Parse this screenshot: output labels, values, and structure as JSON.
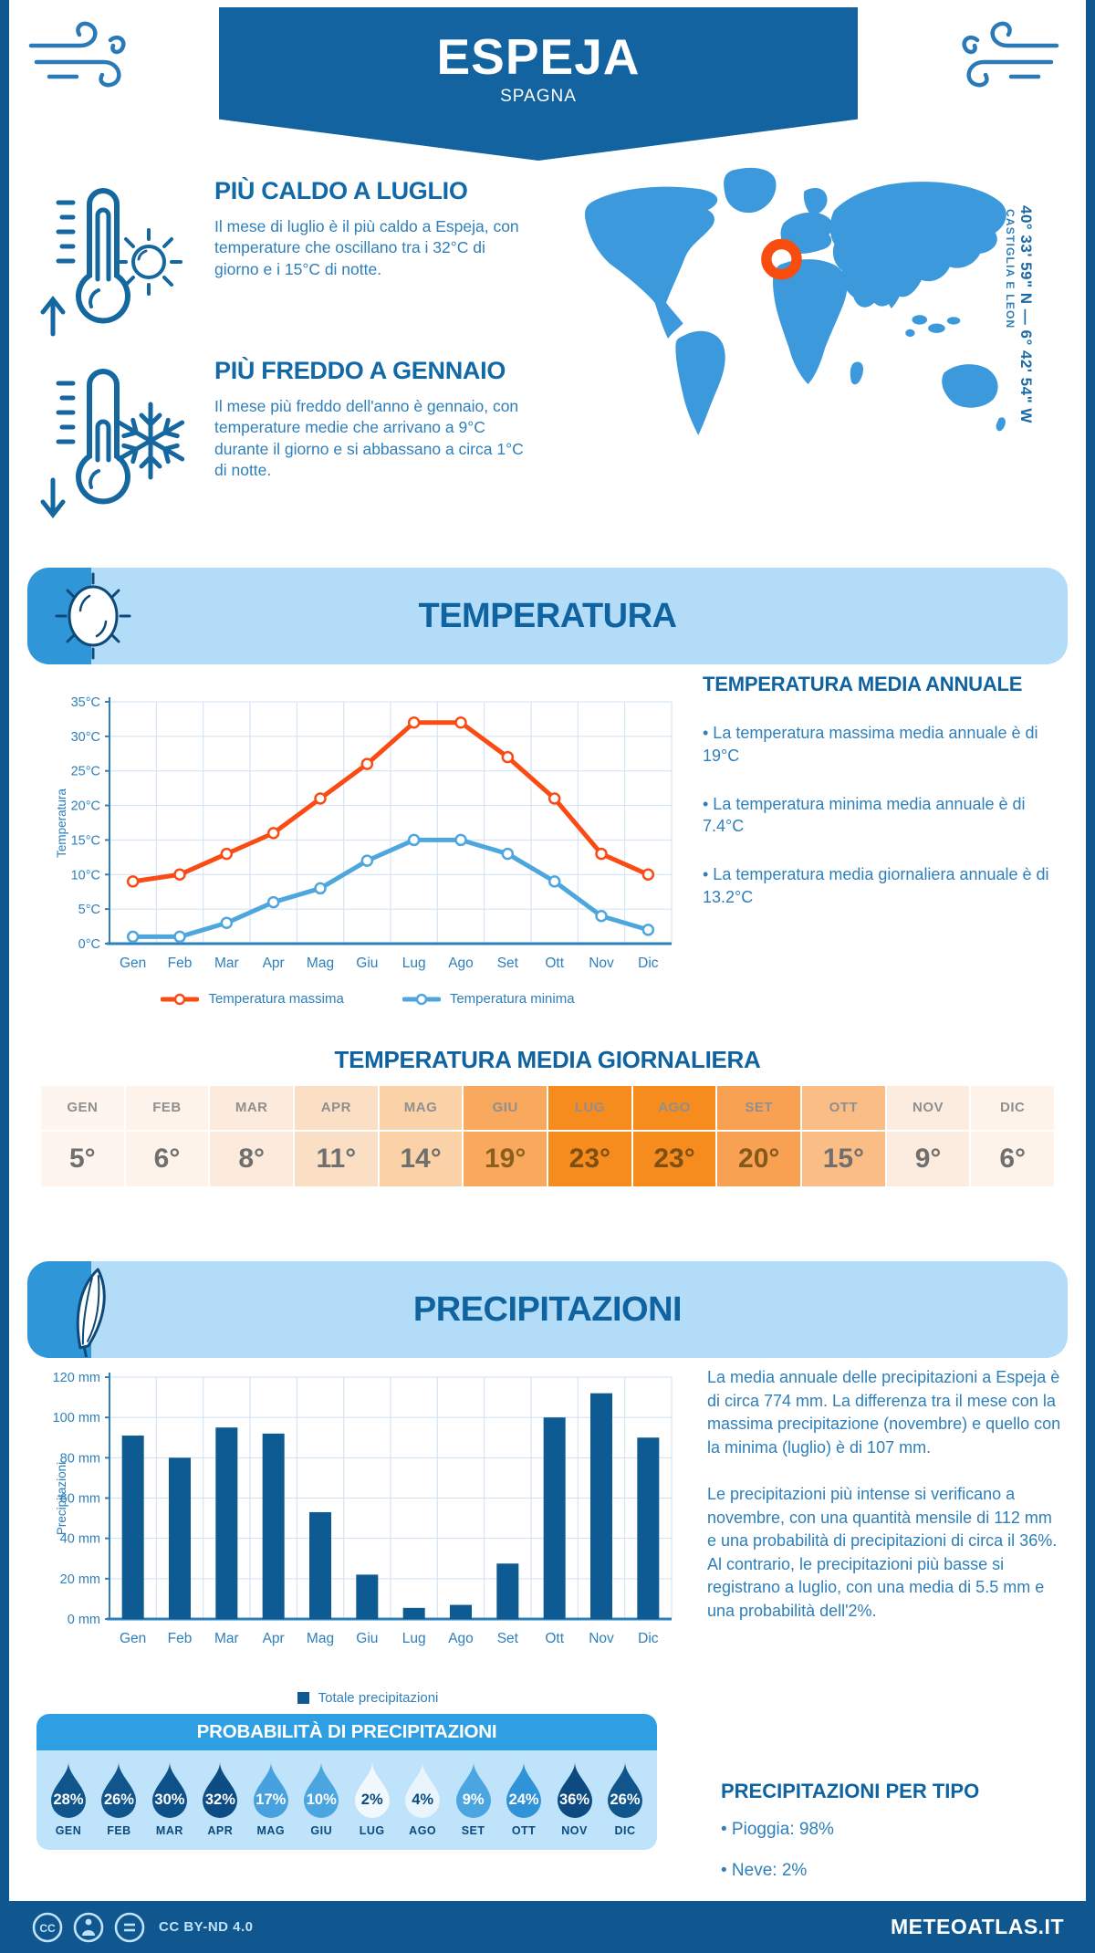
{
  "header": {
    "title": "ESPEJA",
    "subtitle": "SPAGNA"
  },
  "location": {
    "coordinates": "40° 33' 59\" N — 6° 42' 54\" W",
    "region": "CASTIGLIA E LEON",
    "map_color": "#3b99dc",
    "marker_color": "#f94d0f"
  },
  "highlights": {
    "warm": {
      "title": "PIÙ CALDO A LUGLIO",
      "text": "Il mese di luglio è il più caldo a Espeja, con temperature che oscillano tra i 32°C di giorno e i 15°C di notte."
    },
    "cold": {
      "title": "PIÙ FREDDO A GENNAIO",
      "text": "Il mese più freddo dell'anno è gennaio, con temperature medie che arrivano a 9°C durante il giorno e si abbassano a circa 1°C di notte."
    }
  },
  "temperature_section": {
    "banner_title": "TEMPERATURA",
    "annual": {
      "title": "TEMPERATURA MEDIA ANNUALE",
      "bullets": [
        "• La temperatura massima media annuale è di 19°C",
        "• La temperatura minima media annuale è di 7.4°C",
        "• La temperatura media giornaliera annuale è di 13.2°C"
      ]
    },
    "daily_table": {
      "title": "TEMPERATURA MEDIA GIORNALIERA",
      "months": [
        "GEN",
        "FEB",
        "MAR",
        "APR",
        "MAG",
        "GIU",
        "LUG",
        "AGO",
        "SET",
        "OTT",
        "NOV",
        "DIC"
      ],
      "values": [
        "5°",
        "6°",
        "8°",
        "11°",
        "14°",
        "19°",
        "23°",
        "23°",
        "20°",
        "15°",
        "9°",
        "6°"
      ],
      "colors": [
        "#fdf5ee",
        "#fdf3ea",
        "#fcebdc",
        "#fbdfc5",
        "#fbd2a7",
        "#f8a95e",
        "#f78c1e",
        "#f78c1e",
        "#f8a152",
        "#fabd85",
        "#fcecdf",
        "#fdf3ea"
      ],
      "value_colors": [
        "#6f6f6f",
        "#6f6f6f",
        "#6f6f6f",
        "#6f6f6f",
        "#6f6f6f",
        "#8c5f1d",
        "#7c4f12",
        "#7c4f12",
        "#84591b",
        "#6f6f6f",
        "#6f6f6f",
        "#6f6f6f"
      ]
    }
  },
  "precipitation_section": {
    "banner_title": "PRECIPITAZIONI",
    "paragraphs": [
      "La media annuale delle precipitazioni a Espeja è di circa 774 mm. La differenza tra il mese con la massima precipitazione (novembre) e quello con la minima (luglio) è di 107 mm.",
      "Le precipitazioni più intense si verificano a novembre, con una quantità mensile di 112 mm e una probabilità di precipitazioni di circa il 36%. Al contrario, le precipitazioni più basse si registrano a luglio, con una media di 5.5 mm e una probabilità dell'2%."
    ]
  },
  "probability": {
    "title": "PROBABILITÀ DI PRECIPITAZIONI",
    "items": [
      {
        "month": "GEN",
        "value": "28%",
        "bg": "#10568d",
        "fg": "#ffffff"
      },
      {
        "month": "FEB",
        "value": "26%",
        "bg": "#10568d",
        "fg": "#ffffff"
      },
      {
        "month": "MAR",
        "value": "30%",
        "bg": "#0e5189",
        "fg": "#ffffff"
      },
      {
        "month": "APR",
        "value": "32%",
        "bg": "#0d4c84",
        "fg": "#ffffff"
      },
      {
        "month": "MAG",
        "value": "17%",
        "bg": "#46a1de",
        "fg": "#ffffff"
      },
      {
        "month": "GIU",
        "value": "10%",
        "bg": "#4aa5e0",
        "fg": "#ffffff"
      },
      {
        "month": "LUG",
        "value": "2%",
        "bg": "#f2f9fe",
        "fg": "#0c4a7e"
      },
      {
        "month": "AGO",
        "value": "4%",
        "bg": "#e9f4fc",
        "fg": "#0c4a7e"
      },
      {
        "month": "SET",
        "value": "9%",
        "bg": "#4aa5e0",
        "fg": "#ffffff"
      },
      {
        "month": "OTT",
        "value": "24%",
        "bg": "#3093d8",
        "fg": "#ffffff"
      },
      {
        "month": "NOV",
        "value": "36%",
        "bg": "#0c4a81",
        "fg": "#ffffff"
      },
      {
        "month": "DIC",
        "value": "26%",
        "bg": "#10568d",
        "fg": "#ffffff"
      }
    ]
  },
  "precip_type": {
    "title": "PRECIPITAZIONI PER TIPO",
    "bullets": [
      "• Pioggia: 98%",
      "• Neve: 2%"
    ]
  },
  "footer": {
    "license": "CC BY-ND 4.0",
    "site": "METEOATLAS.IT"
  },
  "chart_data": [
    {
      "type": "line",
      "title": "",
      "categories": [
        "Gen",
        "Feb",
        "Mar",
        "Apr",
        "Mag",
        "Giu",
        "Lug",
        "Ago",
        "Set",
        "Ott",
        "Nov",
        "Dic"
      ],
      "series": [
        {
          "name": "Temperatura massima",
          "color": "#fb4b14",
          "values": [
            9,
            10,
            13,
            16,
            21,
            26,
            32,
            32,
            27,
            21,
            13,
            10
          ]
        },
        {
          "name": "Temperatura minima",
          "color": "#4da6de",
          "values": [
            1,
            1,
            3,
            6,
            8,
            12,
            15,
            15,
            13,
            9,
            4,
            2
          ]
        }
      ],
      "xlabel": "",
      "ylabel": "Temperatura",
      "ylim": [
        0,
        35
      ],
      "ytick_step": 5,
      "tick_suffix": "°C",
      "ytick_labels": [
        "0°C",
        "5°C",
        "10°C",
        "15°C",
        "20°C",
        "25°C",
        "30°C",
        "35°C"
      ],
      "grid": true,
      "legend_position": "bottom"
    },
    {
      "type": "bar",
      "title": "",
      "categories": [
        "Gen",
        "Feb",
        "Mar",
        "Apr",
        "Mag",
        "Giu",
        "Lug",
        "Ago",
        "Set",
        "Ott",
        "Nov",
        "Dic"
      ],
      "series": [
        {
          "name": "Totale precipitazioni",
          "color": "#0e5a92",
          "values": [
            91,
            80,
            95,
            92,
            53,
            22,
            5.5,
            7,
            27.5,
            100,
            112,
            90
          ]
        }
      ],
      "xlabel": "",
      "ylabel": "Precipitazioni",
      "ylim": [
        0,
        120
      ],
      "ytick_step": 20,
      "tick_suffix": " mm",
      "ytick_labels": [
        "0 mm",
        "20 mm",
        "40 mm",
        "60 mm",
        "80 mm",
        "100 mm",
        "120 mm"
      ],
      "grid": true,
      "legend_position": "bottom"
    }
  ]
}
